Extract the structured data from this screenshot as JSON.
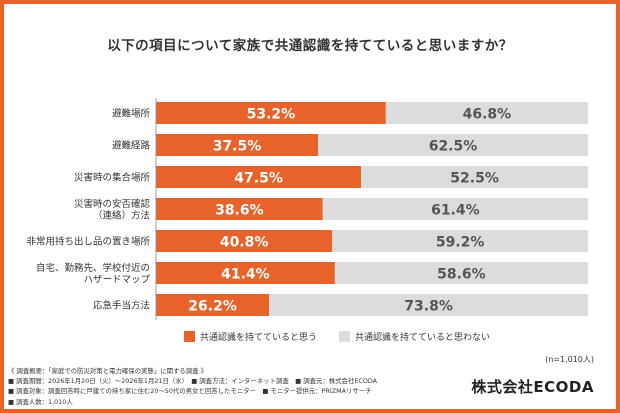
{
  "title": "以下の項目について家族で共通認識を持てていると思いますか？",
  "chart_data": {
    "type": "bar",
    "stacked": true,
    "orientation": "horizontal",
    "categories": [
      [
        "避難場所"
      ],
      [
        "避難経路"
      ],
      [
        "災害時の集合場所"
      ],
      [
        "災害時の安否確認",
        "（連絡）方法"
      ],
      [
        "非常用持ち出し品の置き場所"
      ],
      [
        "自宅、勤務先、学校付近の",
        "ハザードマップ"
      ],
      [
        "応急手当方法"
      ]
    ],
    "series": [
      {
        "name": "共通認識を持てていると思う",
        "color": "#e8622a",
        "values": [
          53.2,
          37.5,
          47.5,
          38.6,
          40.8,
          41.4,
          26.2
        ]
      },
      {
        "name": "共通認識を持てていると思わない",
        "color": "#dcdcdc",
        "values": [
          46.8,
          62.5,
          52.5,
          61.4,
          59.2,
          58.6,
          73.8
        ]
      }
    ],
    "value_suffix": "%",
    "xlim": [
      0,
      100
    ],
    "legend_position": "bottom"
  },
  "sample_size": "(n=1,010人)",
  "notes": [
    "《 調査概要：「家庭での防災対策と電力確保の実態」に関する調査 》",
    "■ 調査期間：2026年1月20日（火）～2026年1月21日（水）　■ 調査方法：インターネット調査　■ 調査元：株式会社ECODA",
    "■ 調査対象：調査回答時に戸建ての持ち家に住む20～50代の男女と回答したモニター　■ モニター提供元：PRIZMAリサーチ",
    "■ 調査人数：1,010人"
  ],
  "brand": "株式会社ECODA"
}
